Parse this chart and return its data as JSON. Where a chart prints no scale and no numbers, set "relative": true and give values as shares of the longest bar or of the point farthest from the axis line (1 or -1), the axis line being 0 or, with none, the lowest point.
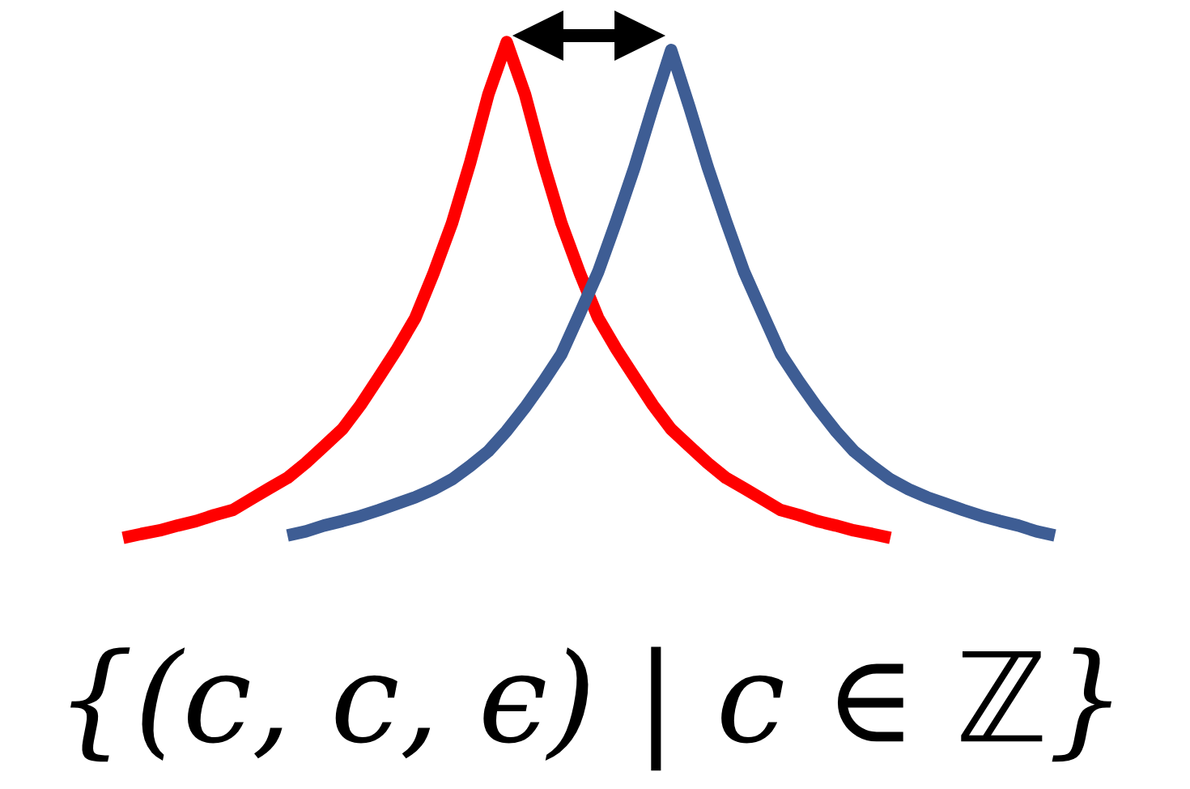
{
  "chart_data": {
    "type": "line",
    "relative": true,
    "categories": [
      null,
      null,
      null,
      null,
      null,
      null,
      null,
      null,
      null,
      null,
      null,
      null,
      null,
      null,
      null,
      null,
      null,
      null,
      null,
      null,
      null,
      null,
      null,
      null,
      null,
      null,
      null,
      null,
      null,
      null,
      null,
      null,
      null,
      null,
      null,
      null,
      null,
      null,
      null,
      null,
      null,
      null,
      null,
      null,
      null,
      null,
      null,
      null,
      null,
      null,
      null,
      null
    ],
    "series": [
      {
        "color": "#ff0000",
        "values": [
          0,
          0.008,
          0.015,
          0.025,
          0.034,
          0.046,
          0.056,
          0.078,
          0.1,
          0.121,
          0.151,
          0.185,
          0.219,
          0.268,
          0.324,
          0.381,
          0.444,
          0.534,
          0.634,
          0.757,
          0.895,
          1,
          0.895,
          0.757,
          0.634,
          0.534,
          0.444,
          0.381,
          0.324,
          0.268,
          0.219,
          0.185,
          0.151,
          0.121,
          0.1,
          0.078,
          0.056,
          0.046,
          0.034,
          0.025,
          0.015,
          0.008,
          0,
          null,
          null,
          null,
          null,
          null,
          null,
          null,
          null,
          null
        ]
      },
      {
        "color": "#3e5d94",
        "values": [
          null,
          null,
          null,
          null,
          null,
          null,
          null,
          null,
          null,
          0.005,
          0.013,
          0.025,
          0.034,
          0.044,
          0.056,
          0.069,
          0.082,
          0.098,
          0.118,
          0.145,
          0.175,
          0.216,
          0.263,
          0.315,
          0.371,
          0.453,
          0.536,
          0.639,
          0.748,
          0.869,
          0.984,
          0.869,
          0.748,
          0.639,
          0.536,
          0.453,
          0.371,
          0.315,
          0.263,
          0.216,
          0.175,
          0.145,
          0.118,
          0.098,
          0.082,
          0.069,
          0.056,
          0.044,
          0.034,
          0.025,
          0.013,
          0.005
        ]
      }
    ],
    "annotations": [
      "{(c, c, ϵ) | c ∈ ℤ}"
    ]
  }
}
